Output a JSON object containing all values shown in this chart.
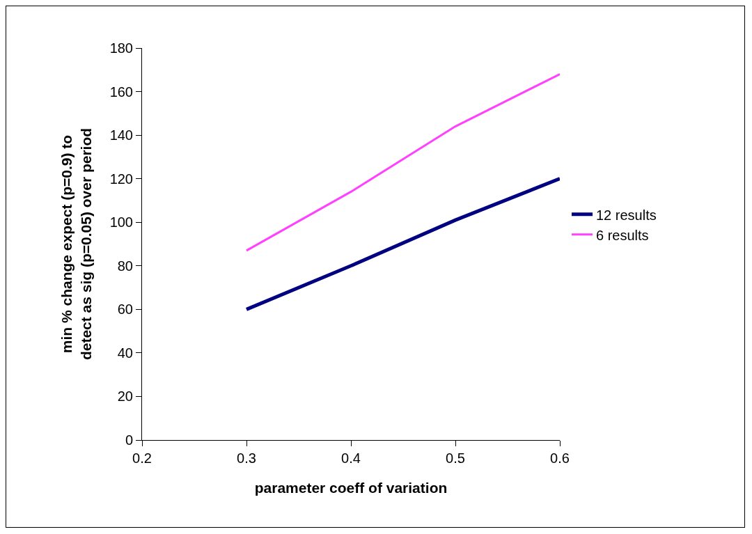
{
  "chart_data": {
    "type": "line",
    "xlabel": "parameter coeff of variation",
    "ylabel": "min % change expect (p=0.9) to detect as sig (p=0.05) over period",
    "x": [
      0.3,
      0.4,
      0.5,
      0.6
    ],
    "series": [
      {
        "name": "12 results",
        "color": "#000080",
        "values": [
          60,
          80,
          101,
          120
        ]
      },
      {
        "name": "6 results",
        "color": "#ff40ff",
        "values": [
          87,
          114,
          144,
          168
        ]
      }
    ],
    "xlim": [
      0.2,
      0.6
    ],
    "xticks": [
      0.2,
      0.3,
      0.4,
      0.5,
      0.6
    ],
    "ylim": [
      0,
      180
    ],
    "yticks": [
      0,
      20,
      40,
      60,
      80,
      100,
      120,
      140,
      160,
      180
    ],
    "grid": false,
    "legend": "right",
    "marker": "none"
  }
}
